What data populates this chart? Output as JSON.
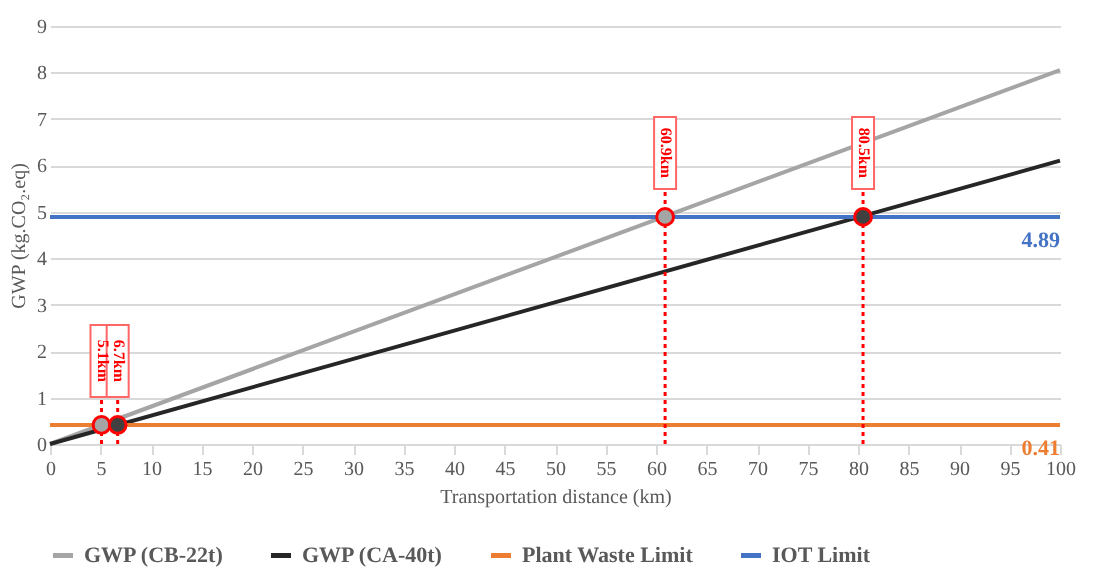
{
  "chart_data": {
    "type": "line",
    "xlabel": "Transportation distance (km)",
    "ylabel": "GWP (kg.CO₂.eq)",
    "xlim": [
      0,
      100
    ],
    "xticks": [
      0,
      5,
      10,
      15,
      20,
      25,
      30,
      35,
      40,
      45,
      50,
      55,
      60,
      65,
      70,
      75,
      80,
      85,
      90,
      95,
      100
    ],
    "ylim": [
      0,
      9
    ],
    "yticks": [
      0,
      1,
      2,
      3,
      4,
      5,
      6,
      7,
      8,
      9
    ],
    "grid": "y",
    "legend": "bottom",
    "marker": "none",
    "line_style": "solid",
    "series": [
      {
        "name": "GWP (CB-22t)",
        "color": "#a5a5a5",
        "x": [
          0,
          100
        ],
        "values": [
          0,
          8.05
        ]
      },
      {
        "name": "GWP (CA-40t)",
        "color": "#262626",
        "x": [
          0,
          100
        ],
        "values": [
          0,
          6.1
        ]
      },
      {
        "name": "Plant Waste Limit",
        "color": "#ed7d31",
        "x": [
          0,
          100
        ],
        "values": [
          0.41,
          0.41
        ],
        "value_labels": [
          null,
          "0.41"
        ]
      },
      {
        "name": "IOT Limit",
        "color": "#4472c4",
        "x": [
          0,
          100
        ],
        "values": [
          4.89,
          4.89
        ],
        "value_labels": [
          null,
          "4.89"
        ]
      },
      {
        "type": "scatter",
        "marker": "circle",
        "color": "#a5a5a5",
        "x": [
          5.1,
          60.9
        ],
        "values": [
          0.41,
          4.89
        ]
      },
      {
        "type": "scatter",
        "marker": "circle",
        "color": "#404040",
        "x": [
          6.7,
          80.5
        ],
        "values": [
          0.41,
          4.89
        ]
      }
    ],
    "annotations": [
      {
        "text": "5.1km",
        "x": 5.1,
        "y": 0.41
      },
      {
        "text": "6.7km",
        "x": 6.7,
        "y": 0.41
      },
      {
        "text": "60.9km",
        "x": 60.9,
        "y": 4.89
      },
      {
        "text": "80.5km",
        "x": 80.5,
        "y": 4.89
      }
    ]
  }
}
